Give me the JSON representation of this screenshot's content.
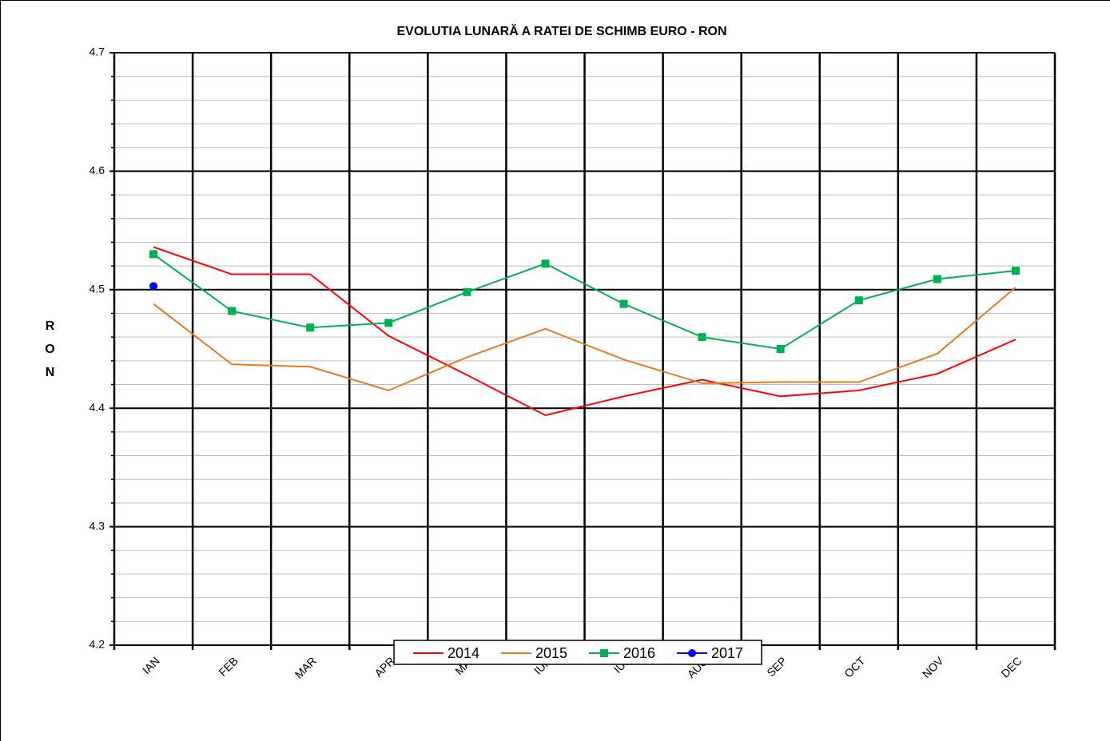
{
  "chart_data": {
    "type": "line",
    "title": "EVOLUTIA LUNARĂ A RATEI DE SCHIMB EURO - RON",
    "y_label": "RON",
    "categories": [
      "IAN",
      "FEB",
      "MAR",
      "APR",
      "MAI",
      "IUN",
      "IUL",
      "AUG",
      "SEP",
      "OCT",
      "NOV",
      "DEC"
    ],
    "series": [
      {
        "name": "2014",
        "color": "#ff0000",
        "marker": "none",
        "values": [
          4.536,
          4.513,
          4.513,
          4.461,
          4.428,
          4.394,
          4.41,
          4.424,
          4.41,
          4.415,
          4.429,
          4.458
        ]
      },
      {
        "name": "2015",
        "color": "#e87722",
        "marker": "none",
        "values": [
          4.488,
          4.437,
          4.435,
          4.415,
          4.443,
          4.467,
          4.441,
          4.421,
          4.422,
          4.422,
          4.446,
          4.502
        ]
      },
      {
        "name": "2016",
        "color": "#00b050",
        "marker": "square",
        "values": [
          4.53,
          4.482,
          4.468,
          4.472,
          4.498,
          4.522,
          4.488,
          4.46,
          4.45,
          4.491,
          4.509,
          4.516
        ]
      },
      {
        "name": "2017",
        "color": "#0000ff",
        "marker": "circle",
        "values": [
          4.503,
          null,
          null,
          null,
          null,
          null,
          null,
          null,
          null,
          null,
          null,
          null
        ]
      }
    ],
    "ylim": [
      4.2,
      4.7
    ],
    "yticks": [
      4.2,
      4.3,
      4.4,
      4.5,
      4.6,
      4.7
    ],
    "yminor_ticks": [
      4.22,
      4.24,
      4.26,
      4.28,
      4.32,
      4.34,
      4.36,
      4.38,
      4.42,
      4.44,
      4.46,
      4.48,
      4.52,
      4.54,
      4.56,
      4.58,
      4.62,
      4.64,
      4.66,
      4.68
    ],
    "grid": true,
    "legend": "bottom"
  }
}
